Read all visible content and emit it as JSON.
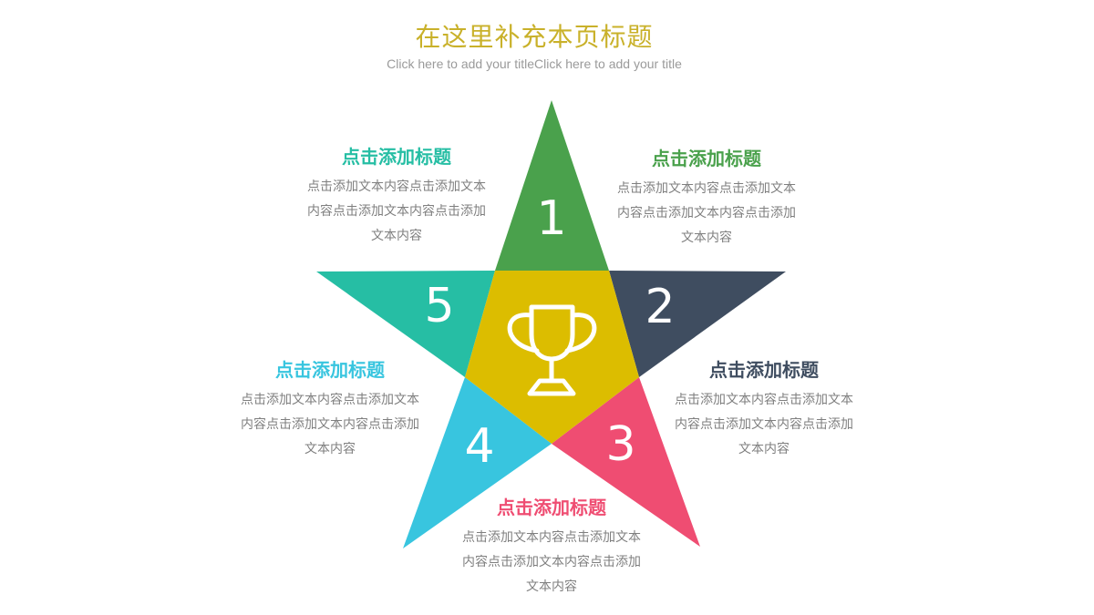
{
  "header": {
    "title": "在这里补充本页标题",
    "subtitle": "Click here to add your titleClick here to add your title"
  },
  "colors": {
    "title": "#c9b12a",
    "subtitle": "#9a9a9a",
    "body_text": "#7f7f7f",
    "segment_1": "#4aa14c",
    "segment_2": "#3f4d60",
    "segment_3": "#ef4d72",
    "segment_4": "#38c5df",
    "segment_5": "#26bea4",
    "center": "#dcbd00",
    "icon": "#ffffff"
  },
  "center": {
    "icon": "trophy-icon"
  },
  "segments": [
    {
      "number": "1",
      "title": "点击添加标题",
      "lines": [
        "点击添加文本内容点击添加文本",
        "内容点击添加文本内容点击添加",
        "文本内容"
      ]
    },
    {
      "number": "2",
      "title": "点击添加标题",
      "lines": [
        "点击添加文本内容点击添加文本",
        "内容点击添加文本内容点击添加",
        "文本内容"
      ]
    },
    {
      "number": "3",
      "title": "点击添加标题",
      "lines": [
        "点击添加文本内容点击添加文本",
        "内容点击添加文本内容点击添加",
        "文本内容"
      ]
    },
    {
      "number": "4",
      "title": "点击添加标题",
      "lines": [
        "点击添加文本内容点击添加文本",
        "内容点击添加文本内容点击添加",
        "文本内容"
      ]
    },
    {
      "number": "5",
      "title": "点击添加标题",
      "lines": [
        "点击添加文本内容点击添加文本",
        "内容点击添加文本内容点击添加",
        "文本内容"
      ]
    }
  ]
}
